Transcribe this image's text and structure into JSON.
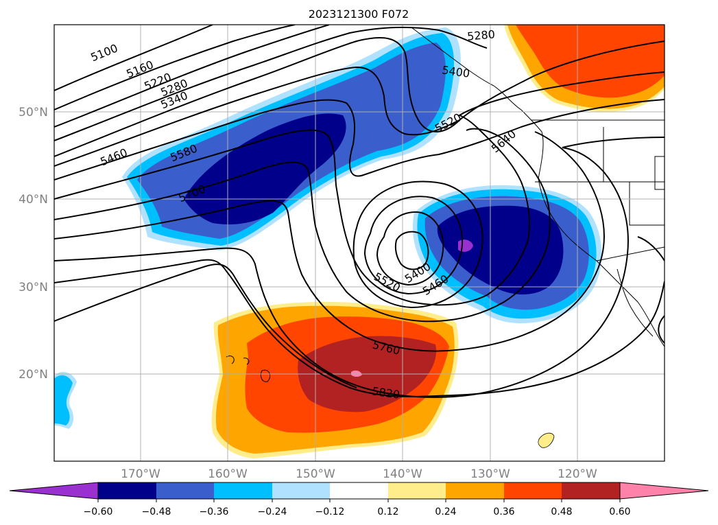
{
  "title": "2023121300 F072",
  "colors": {
    "neg_extreme": "#9b30d0",
    "neg_060": "#00008b",
    "neg_048": "#3a5fcd",
    "neg_036": "#00bfff",
    "neg_024": "#b0e2ff",
    "neutral": "#ffffff",
    "pos_012": "#ffec8b",
    "pos_024": "#ffa500",
    "pos_036": "#ff4500",
    "pos_048": "#b22222",
    "pos_060": "#ff82ab",
    "contour": "#000000",
    "grid": "#b0b0b0",
    "tick_text": "#808080"
  },
  "lon_ticks": [
    "170°W",
    "160°W",
    "150°W",
    "140°W",
    "130°W",
    "120°W"
  ],
  "lat_ticks": [
    "50°N",
    "40°N",
    "30°N",
    "20°N"
  ],
  "colorbar": {
    "ticks": [
      "−0.60",
      "−0.48",
      "−0.36",
      "−0.24",
      "−0.12",
      "0.12",
      "0.24",
      "0.36",
      "0.48",
      "0.60"
    ]
  },
  "contour_labels": [
    "5100",
    "5160",
    "5220",
    "5280",
    "5340",
    "5460",
    "5580",
    "5700",
    "5280",
    "5400",
    "5520",
    "5640",
    "5400",
    "5460",
    "5520",
    "5760",
    "5820"
  ]
}
